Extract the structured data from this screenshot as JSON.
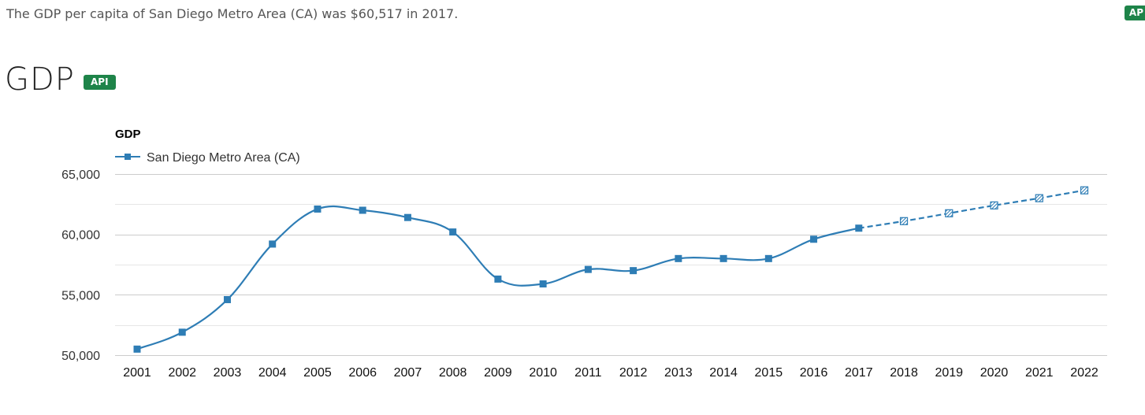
{
  "summary": "The GDP per capita of San Diego Metro Area (CA) was $60,517 in 2017.",
  "corner_badge": "AP",
  "section": {
    "title": "GDP",
    "badge": "API"
  },
  "chart_data": {
    "type": "line",
    "title": "GDP",
    "legend": "top-left",
    "ylim": [
      50000,
      65000
    ],
    "yticks": [
      50000,
      55000,
      60000,
      65000
    ],
    "ytick_labels": [
      "50,000",
      "55,000",
      "60,000",
      "65,000"
    ],
    "grid": true,
    "x": [
      "2001",
      "2002",
      "2003",
      "2004",
      "2005",
      "2006",
      "2007",
      "2008",
      "2009",
      "2010",
      "2011",
      "2012",
      "2013",
      "2014",
      "2015",
      "2016",
      "2017",
      "2018",
      "2019",
      "2020",
      "2021",
      "2022"
    ],
    "series": [
      {
        "name": "San Diego Metro Area (CA)",
        "color": "#2e7db5",
        "values": [
          50500,
          51900,
          54600,
          59200,
          62100,
          62000,
          61400,
          60200,
          56300,
          55900,
          57100,
          57000,
          58000,
          58000,
          58000,
          59600,
          60517,
          61100,
          61750,
          62400,
          63000,
          63650
        ],
        "forecast_from_index": 16
      }
    ]
  }
}
